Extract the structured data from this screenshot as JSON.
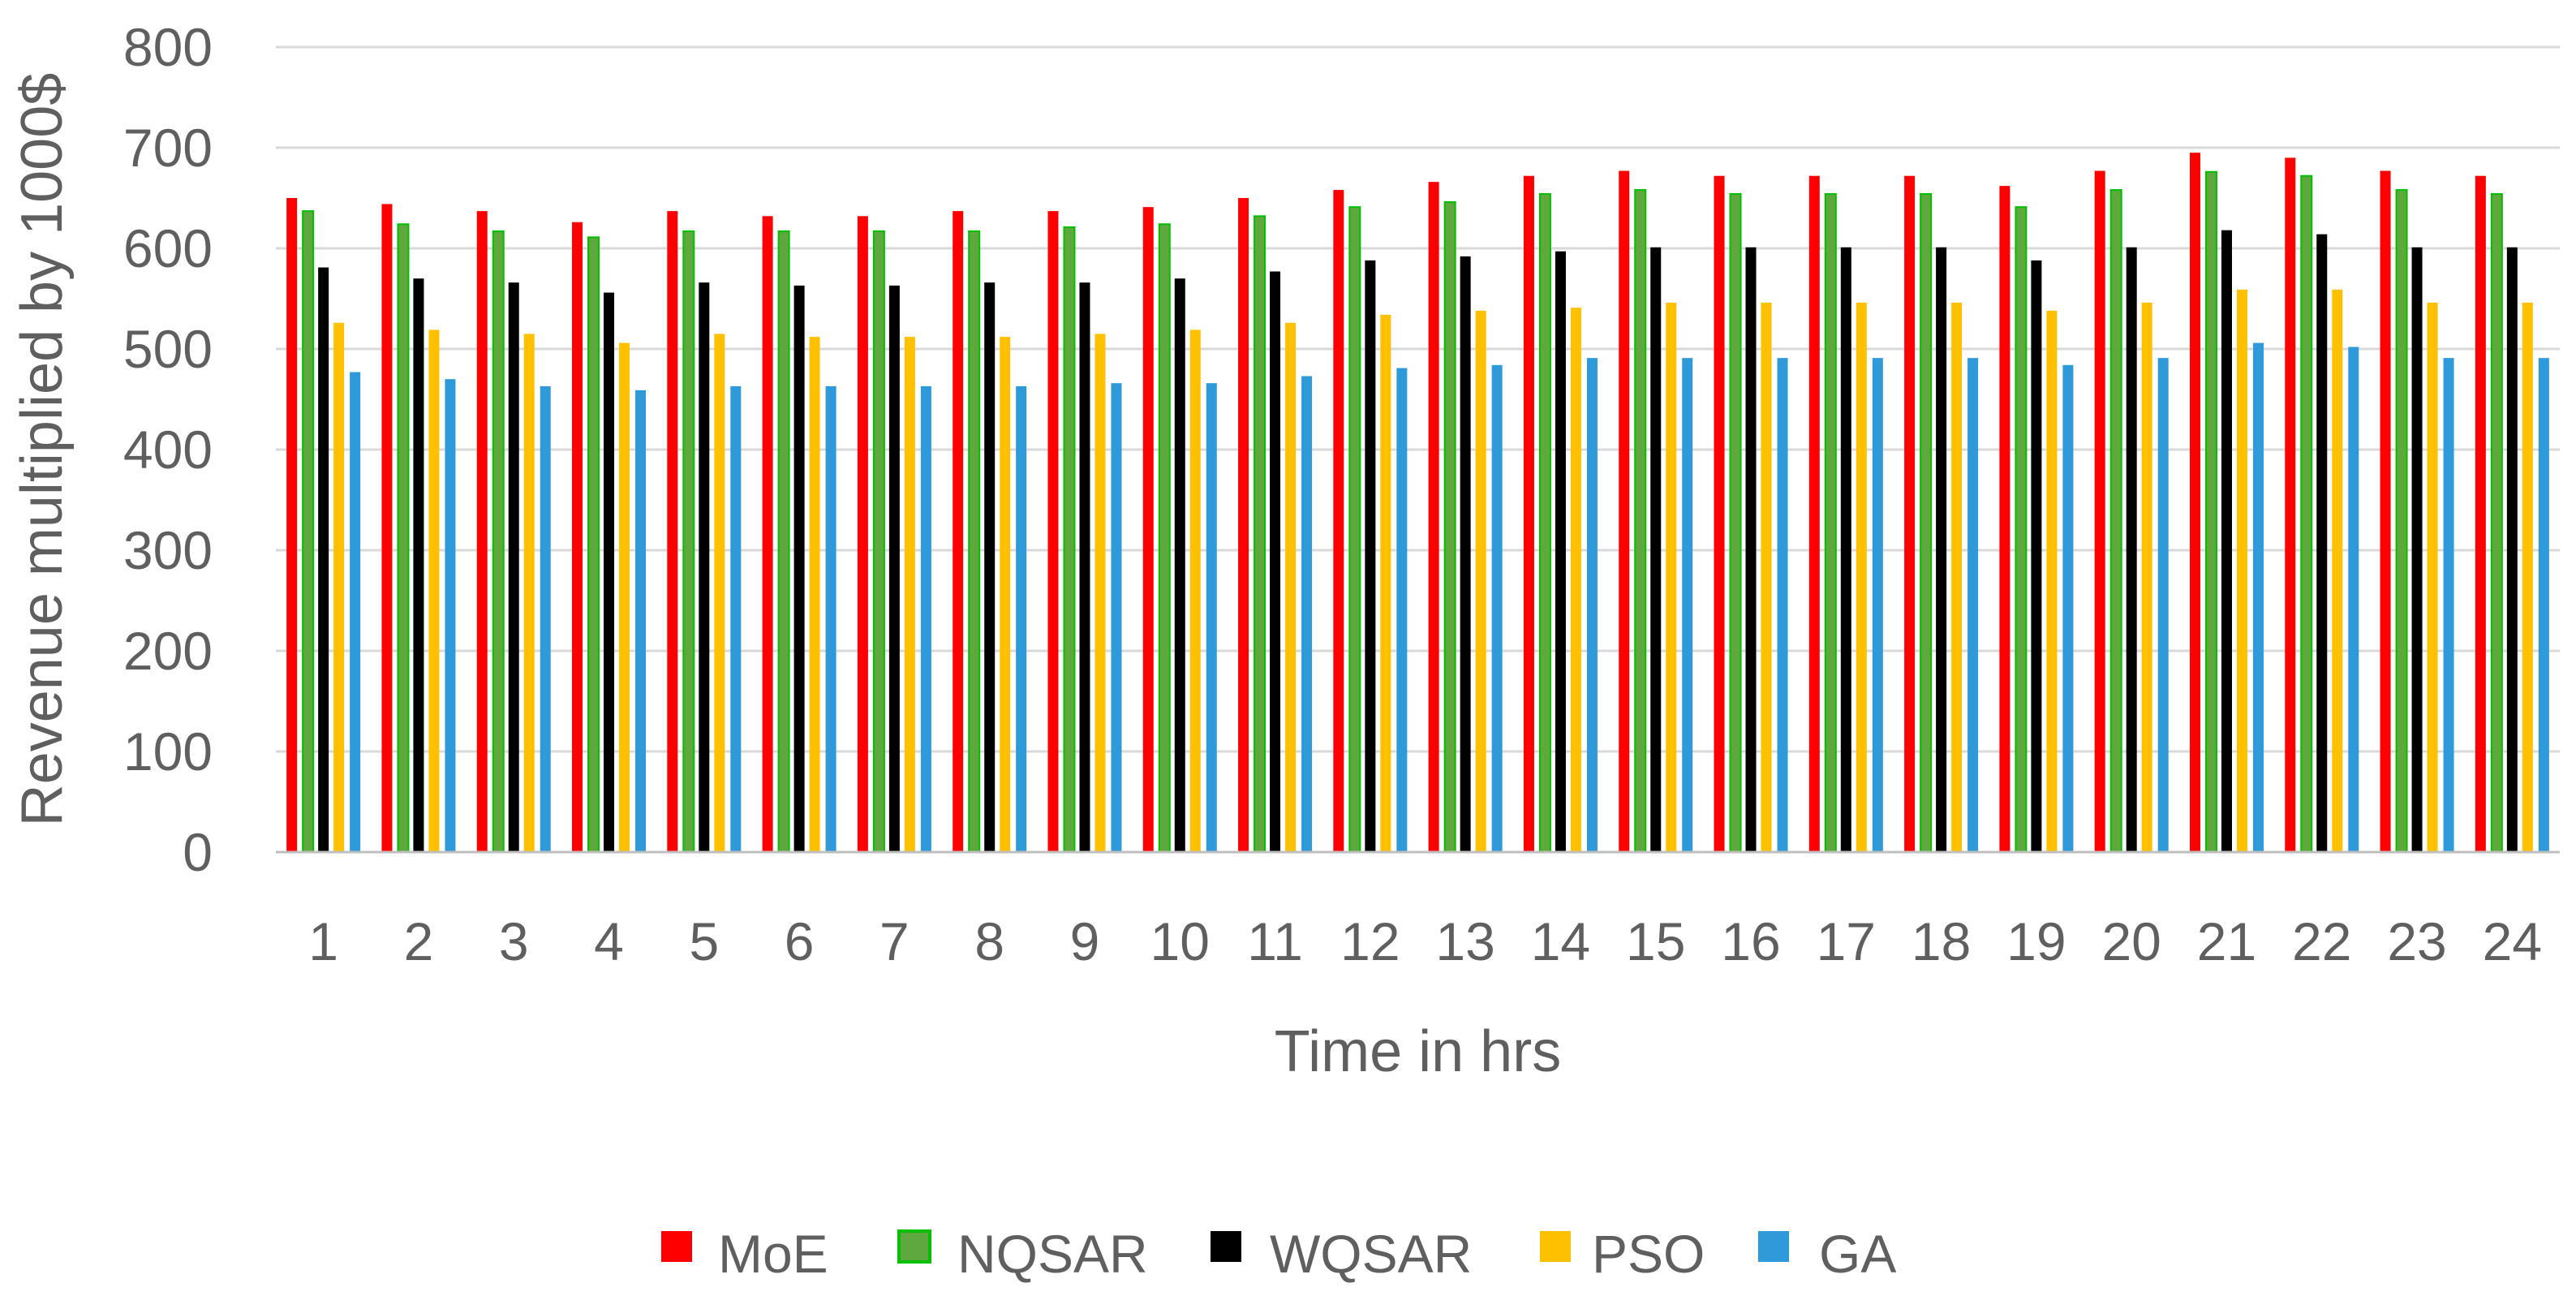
{
  "chart_data": {
    "type": "bar",
    "title": "",
    "xlabel": "Time in hrs",
    "ylabel": "Revenue multiplied by 1000$",
    "ylim": [
      0,
      800
    ],
    "yticks": [
      0,
      100,
      200,
      300,
      400,
      500,
      600,
      700,
      800
    ],
    "grid": true,
    "legend_position": "bottom",
    "categories": [
      "1",
      "2",
      "3",
      "4",
      "5",
      "6",
      "7",
      "8",
      "9",
      "10",
      "11",
      "12",
      "13",
      "14",
      "15",
      "16",
      "17",
      "18",
      "19",
      "20",
      "21",
      "22",
      "23",
      "24"
    ],
    "series": [
      {
        "name": "MoE",
        "color": "#ff0000",
        "values": [
          650,
          644,
          637,
          626,
          637,
          632,
          632,
          637,
          637,
          641,
          650,
          658,
          666,
          672,
          677,
          672,
          672,
          672,
          662,
          677,
          695,
          690,
          677,
          672
        ]
      },
      {
        "name": "NQSAR",
        "color": "#5fa83d",
        "outline": "#00c000",
        "values": [
          637,
          624,
          617,
          611,
          617,
          617,
          617,
          617,
          621,
          624,
          632,
          641,
          646,
          654,
          658,
          654,
          654,
          654,
          641,
          658,
          676,
          672,
          658,
          654
        ]
      },
      {
        "name": "WQSAR",
        "color": "#000000",
        "values": [
          581,
          570,
          566,
          556,
          566,
          563,
          563,
          566,
          566,
          570,
          577,
          588,
          592,
          597,
          601,
          601,
          601,
          601,
          588,
          601,
          618,
          614,
          601,
          601
        ]
      },
      {
        "name": "PSO",
        "color": "#ffc000",
        "values": [
          526,
          519,
          515,
          506,
          515,
          512,
          512,
          512,
          515,
          519,
          526,
          534,
          538,
          541,
          546,
          546,
          546,
          546,
          538,
          546,
          559,
          559,
          546,
          546
        ]
      },
      {
        "name": "GA",
        "color": "#2e9ad9",
        "values": [
          477,
          470,
          463,
          459,
          463,
          463,
          463,
          463,
          466,
          466,
          473,
          481,
          484,
          491,
          491,
          491,
          491,
          491,
          484,
          491,
          506,
          502,
          491,
          491
        ]
      }
    ]
  }
}
